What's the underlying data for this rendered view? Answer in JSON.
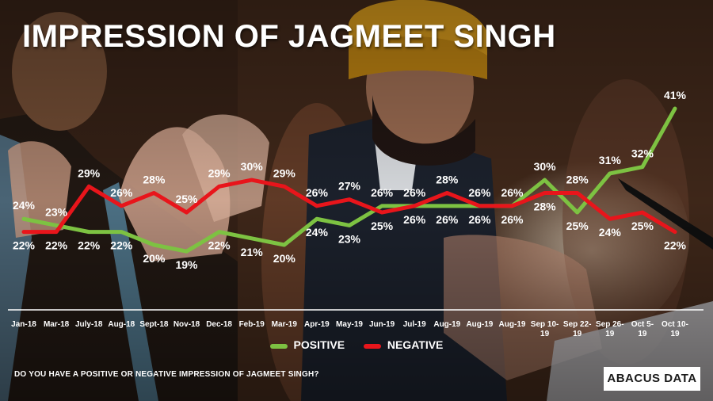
{
  "title": "IMPRESSION OF JAGMEET SINGH",
  "question": "DO YOU HAVE A POSITIVE OR NEGATIVE IMPRESSION OF JAGMEET SINGH?",
  "brand": "ABACUS DATA",
  "colors": {
    "positive": "#7dc242",
    "negative": "#e8151b",
    "text": "#ffffff"
  },
  "chart_data": {
    "type": "line",
    "title": "IMPRESSION OF JAGMEET SINGH",
    "xlabel": "",
    "ylabel": "",
    "categories": [
      [
        "Jan-18"
      ],
      [
        "Mar-18"
      ],
      [
        "July-18"
      ],
      [
        "Aug-18"
      ],
      [
        "Sept-18"
      ],
      [
        "Nov-18"
      ],
      [
        "Dec-18"
      ],
      [
        "Feb-19"
      ],
      [
        "Mar-19"
      ],
      [
        "Apr-19"
      ],
      [
        "May-19"
      ],
      [
        "Jun-19"
      ],
      [
        "Jul-19"
      ],
      [
        "Aug-19"
      ],
      [
        "Aug-19"
      ],
      [
        "Aug-19"
      ],
      [
        "Sep 10-",
        "19"
      ],
      [
        "Sep 22-",
        "19"
      ],
      [
        "Sep 26-",
        "19"
      ],
      [
        "Oct 5-",
        "19"
      ],
      [
        "Oct 10-",
        "19"
      ]
    ],
    "series": [
      {
        "name": "POSITIVE",
        "values": [
          24,
          23,
          22,
          22,
          20,
          19,
          22,
          21,
          20,
          24,
          23,
          26,
          26,
          26,
          26,
          26,
          30,
          25,
          31,
          32,
          41
        ]
      },
      {
        "name": "NEGATIVE",
        "values": [
          22,
          22,
          29,
          26,
          28,
          25,
          29,
          30,
          29,
          26,
          27,
          25,
          26,
          28,
          26,
          26,
          28,
          28,
          24,
          25,
          22
        ]
      }
    ],
    "label_suffix": "%",
    "grid": false,
    "legend_position": "bottom"
  }
}
